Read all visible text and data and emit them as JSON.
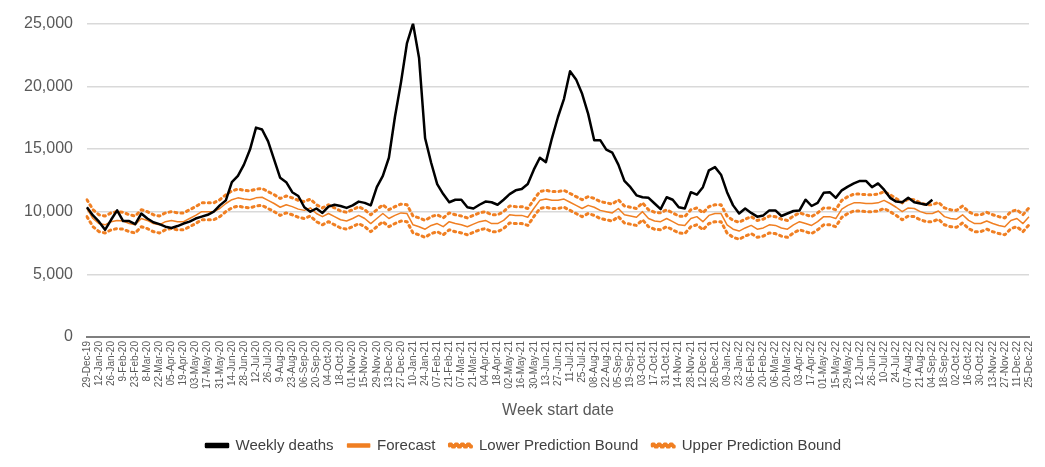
{
  "chart_data": {
    "type": "line",
    "xlabel": "Week start date",
    "categories": [
      "29-Dec-19",
      null,
      "12-Jan-20",
      null,
      "26-Jan-20",
      null,
      "9-Feb-20",
      null,
      "23-Feb-20",
      null,
      "8-Mar-20",
      null,
      "22-Mar-20",
      null,
      "05-Apr-20",
      null,
      "19-Apr-20",
      null,
      "03-May-20",
      null,
      "17-May-20",
      null,
      "31-May-20",
      null,
      "14-Jun-20",
      null,
      "28-Jun-20",
      null,
      "12-Jul-20",
      null,
      "26-Jul-20",
      null,
      "9-Aug-20",
      null,
      "23-Aug-20",
      null,
      "06-Sep-20",
      null,
      "20-Sep-20",
      null,
      "04-Oct-20",
      null,
      "18-Oct-20",
      null,
      "01-Nov-20",
      null,
      "15-Nov-20",
      null,
      "29-Nov-20",
      null,
      "13-Dec-20",
      null,
      "27-Dec-20",
      null,
      "10-Jan-21",
      null,
      "24-Jan-21",
      null,
      "07-Feb-21",
      null,
      "21-Feb-21",
      null,
      "07-Mar-21",
      null,
      "21-Mar-21",
      null,
      "04-Apr-21",
      null,
      "18-Apr-21",
      null,
      "02-May-21",
      null,
      "16-May-21",
      null,
      "30-May-21",
      null,
      "13-Jun-21",
      null,
      "27-Jun-21",
      null,
      "11-Jul-21",
      null,
      "25-Jul-21",
      null,
      "08-Aug-21",
      null,
      "22-Aug-21",
      null,
      "05-Sep-21",
      null,
      "19-Sep-21",
      null,
      "03-Oct-21",
      null,
      "17-Oct-21",
      null,
      "31-Oct-21",
      null,
      "14-Nov-21",
      null,
      "28-Nov-21",
      null,
      "12-Dec-21",
      null,
      "26-Dec-21",
      null,
      "09-Jan-22",
      null,
      "23-Jan-22",
      null,
      "06-Feb-22",
      null,
      "20-Feb-22",
      null,
      "06-Mar-22",
      null,
      "20-Mar-22",
      null,
      "03-Apr-22",
      null,
      "17-Apr-22",
      null,
      "01-May-22",
      null,
      "15-May-22",
      null,
      "29-May-22",
      null,
      "12-Jun-22",
      null,
      "26-Jun-22",
      null,
      "10-Jul-22",
      null,
      "24-Jul-22",
      null,
      "07-Aug-22",
      null,
      "21-Aug-22",
      null,
      "04-Sep-22",
      null,
      "18-Sep-22",
      null,
      "02-Oct-22",
      null,
      "16-Oct-22",
      null,
      "30-Oct-22",
      null,
      "13-Nov-22",
      null,
      "27-Nov-22",
      null,
      "11-Dec-22",
      null,
      "25-Dec-22"
    ],
    "series": [
      {
        "name": "Weekly deaths",
        "color": "#000000",
        "line_style": "solid",
        "values": [
          10350,
          9700,
          9200,
          8550,
          9350,
          10100,
          9250,
          9250,
          9000,
          9850,
          9450,
          9150,
          9000,
          8800,
          8700,
          8850,
          9050,
          9200,
          9450,
          9600,
          9750,
          10000,
          10500,
          10900,
          12350,
          12850,
          13750,
          14950,
          16700,
          16550,
          15600,
          14150,
          12700,
          12350,
          11550,
          11250,
          10350,
          10000,
          10250,
          9900,
          10400,
          10550,
          10450,
          10300,
          10500,
          10800,
          10700,
          10500,
          11950,
          12850,
          14300,
          17550,
          20300,
          23450,
          25000,
          22250,
          15850,
          13900,
          12200,
          11400,
          10750,
          10950,
          10950,
          10350,
          10250,
          10550,
          10800,
          10750,
          10550,
          10950,
          11400,
          11700,
          11800,
          12200,
          13350,
          14300,
          13950,
          15850,
          17550,
          19000,
          21200,
          20550,
          19400,
          17800,
          15700,
          15700,
          14950,
          14700,
          13750,
          12450,
          11950,
          11300,
          11150,
          11100,
          10650,
          10200,
          11150,
          10950,
          10350,
          10250,
          11550,
          11350,
          11950,
          13300,
          13550,
          12950,
          11550,
          10500,
          9850,
          10250,
          9900,
          9600,
          9700,
          10100,
          10100,
          9650,
          9850,
          10050,
          10100,
          10950,
          10450,
          10700,
          11500,
          11550,
          11100,
          11700,
          12000,
          12250,
          12450,
          12450,
          11950,
          12250,
          11750,
          11100,
          10800,
          10750,
          11100,
          10750,
          10650,
          10550,
          10950,
          null,
          null,
          null,
          null,
          null,
          null,
          null,
          null,
          null,
          null,
          null,
          null,
          null,
          null,
          null,
          null
        ]
      },
      {
        "name": "Forecast",
        "color": "#f07f22",
        "line_style": "solid",
        "values": [
          10250,
          9450,
          9050,
          8950,
          9200,
          9300,
          9250,
          9050,
          8950,
          9450,
          9300,
          9050,
          8950,
          9200,
          9300,
          9200,
          9200,
          9450,
          9700,
          10000,
          10000,
          10000,
          10250,
          10650,
          10950,
          11100,
          11000,
          10950,
          11100,
          11150,
          10900,
          10650,
          10350,
          10550,
          10400,
          10200,
          10100,
          10300,
          9850,
          9600,
          9850,
          9600,
          9350,
          9250,
          9450,
          9700,
          9450,
          9050,
          9450,
          9850,
          9450,
          9700,
          9900,
          9850,
          8950,
          8800,
          8600,
          8900,
          9050,
          8800,
          9200,
          9050,
          8950,
          8800,
          9000,
          9200,
          9300,
          9050,
          9050,
          9300,
          9750,
          9700,
          9700,
          9550,
          10250,
          10900,
          11000,
          10900,
          10900,
          11000,
          10750,
          10500,
          10250,
          10500,
          10350,
          10100,
          10000,
          9900,
          10250,
          9750,
          9650,
          9550,
          10000,
          9450,
          9250,
          9200,
          9450,
          9200,
          8950,
          8900,
          9450,
          9600,
          9200,
          9700,
          9850,
          9850,
          8950,
          8600,
          8450,
          8700,
          8900,
          8600,
          8700,
          8950,
          8900,
          8700,
          8600,
          8950,
          9200,
          9050,
          8900,
          9200,
          9600,
          9600,
          9450,
          10200,
          10500,
          10700,
          10700,
          10650,
          10650,
          10700,
          10900,
          10650,
          10350,
          10000,
          10300,
          10250,
          10000,
          9850,
          9850,
          10050,
          9600,
          9450,
          9400,
          9750,
          9300,
          9050,
          9050,
          9250,
          9050,
          8900,
          8800,
          9300,
          9450,
          9050,
          9600
        ]
      },
      {
        "name": "Lower Prediction Bound",
        "color": "#f07f22",
        "line_style": "dotted",
        "values": [
          9600,
          8800,
          8400,
          8300,
          8550,
          8650,
          8600,
          8400,
          8300,
          8800,
          8650,
          8400,
          8300,
          8550,
          8650,
          8550,
          8550,
          8800,
          9050,
          9350,
          9350,
          9350,
          9600,
          10000,
          10300,
          10450,
          10350,
          10300,
          10450,
          10500,
          10250,
          10000,
          9700,
          9900,
          9750,
          9550,
          9450,
          9650,
          9200,
          8950,
          9200,
          8950,
          8700,
          8600,
          8800,
          9050,
          8800,
          8400,
          8800,
          9200,
          8800,
          9050,
          9250,
          9200,
          8300,
          8150,
          7950,
          8250,
          8400,
          8150,
          8550,
          8400,
          8300,
          8150,
          8350,
          8550,
          8650,
          8400,
          8400,
          8650,
          9100,
          9050,
          9050,
          8900,
          9600,
          10250,
          10350,
          10250,
          10250,
          10350,
          10100,
          9850,
          9600,
          9850,
          9700,
          9450,
          9350,
          9250,
          9600,
          9100,
          9000,
          8900,
          9350,
          8800,
          8600,
          8550,
          8800,
          8550,
          8300,
          8250,
          8800,
          8950,
          8550,
          9050,
          9200,
          9200,
          8300,
          7950,
          7800,
          8050,
          8250,
          7950,
          8050,
          8300,
          8250,
          8050,
          7950,
          8300,
          8550,
          8400,
          8250,
          8550,
          8950,
          8950,
          8800,
          9550,
          9850,
          10050,
          10050,
          10000,
          10000,
          10050,
          10250,
          10000,
          9700,
          9350,
          9650,
          9600,
          9350,
          9200,
          9200,
          9400,
          8950,
          8800,
          8750,
          9100,
          8650,
          8400,
          8400,
          8600,
          8400,
          8250,
          8150,
          8650,
          8800,
          8400,
          8950
        ]
      },
      {
        "name": "Upper Prediction Bound",
        "color": "#f07f22",
        "line_style": "dotted",
        "values": [
          10950,
          10150,
          9750,
          9650,
          9900,
          10000,
          9950,
          9750,
          9650,
          10150,
          10000,
          9750,
          9650,
          9900,
          10000,
          9900,
          9900,
          10150,
          10400,
          10700,
          10700,
          10700,
          10950,
          11350,
          11650,
          11800,
          11700,
          11650,
          11800,
          11850,
          11600,
          11350,
          11050,
          11250,
          11100,
          10900,
          10800,
          11000,
          10550,
          10300,
          10550,
          10300,
          10050,
          9950,
          10150,
          10400,
          10150,
          9750,
          10150,
          10550,
          10150,
          10400,
          10600,
          10550,
          9650,
          9500,
          9300,
          9600,
          9750,
          9500,
          9900,
          9750,
          9650,
          9500,
          9700,
          9900,
          10000,
          9750,
          9750,
          10000,
          10450,
          10400,
          10400,
          10250,
          10950,
          11600,
          11700,
          11600,
          11600,
          11700,
          11450,
          11200,
          10950,
          11200,
          11050,
          10800,
          10700,
          10600,
          10950,
          10450,
          10350,
          10250,
          10700,
          10150,
          9950,
          9900,
          10150,
          9900,
          9650,
          9600,
          10150,
          10300,
          9900,
          10400,
          10550,
          10550,
          9650,
          9300,
          9150,
          9400,
          9600,
          9300,
          9400,
          9650,
          9600,
          9400,
          9300,
          9650,
          9900,
          9750,
          9600,
          9900,
          10300,
          10300,
          10150,
          10900,
          11200,
          11400,
          11400,
          11350,
          11350,
          11400,
          11600,
          11350,
          11050,
          10700,
          11000,
          10950,
          10700,
          10550,
          10550,
          10750,
          10300,
          10150,
          10100,
          10450,
          10000,
          9750,
          9750,
          9950,
          9750,
          9600,
          9500,
          10000,
          10150,
          9750,
          10300
        ]
      }
    ],
    "ylim": [
      0,
      25000
    ],
    "yticks": [
      0,
      {
        "value": 5000,
        "label": "5,000"
      },
      {
        "value": 10000,
        "label": "10,000"
      },
      {
        "value": 15000,
        "label": "15,000"
      },
      {
        "value": 20000,
        "label": "20,000"
      },
      {
        "value": 25000,
        "label": "25,000"
      }
    ],
    "grid": "y",
    "legend": "bottom",
    "marker": "none"
  }
}
